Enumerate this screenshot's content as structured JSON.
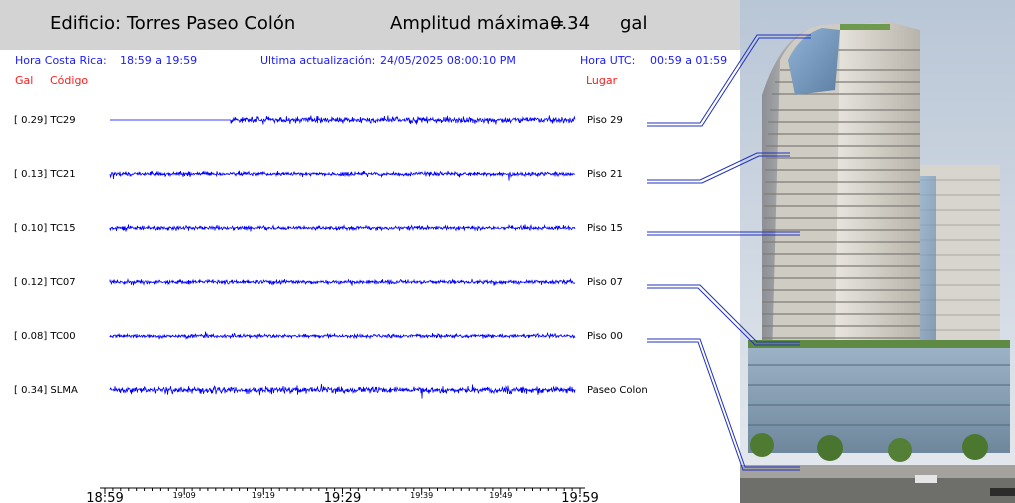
{
  "header": {
    "building_label": "Edificio:",
    "building_name": "Torres Paseo Colón",
    "max_amp_label": "Amplitud máxima=",
    "max_amp_value": "0.34",
    "max_amp_unit": "gal"
  },
  "info": {
    "local_time_label": "Hora Costa Rica:",
    "local_time_range": "18:59 a 19:59",
    "update_label": "Ultima actualización:",
    "update_value": "24/05/2025 08:00:10 PM",
    "utc_label": "Hora UTC:",
    "utc_range": "00:59 a 01:59"
  },
  "columns": {
    "gal": "Gal",
    "code": "Código",
    "place": "Lugar"
  },
  "channels": [
    {
      "label": "[  0.29] TC29",
      "place": "Piso 29",
      "amp": 0.29,
      "start_fraction": 0.26
    },
    {
      "label": "[  0.13] TC21",
      "place": "Piso 21",
      "amp": 0.13,
      "start_fraction": 0
    },
    {
      "label": "[  0.10] TC15",
      "place": "Piso 15",
      "amp": 0.1,
      "start_fraction": 0
    },
    {
      "label": "[  0.12] TC07",
      "place": "Piso 07",
      "amp": 0.12,
      "start_fraction": 0
    },
    {
      "label": "[  0.08] TC00",
      "place": "Piso 00",
      "amp": 0.08,
      "start_fraction": 0
    },
    {
      "label": "[  0.34] SLMA",
      "place": "Paseo Colon",
      "amp": 0.34,
      "start_fraction": 0
    }
  ],
  "time_axis": {
    "major_ticks": [
      "18:59",
      "19:29",
      "19:59"
    ],
    "minor_ticks": [
      "19:09",
      "19:19",
      "19:39",
      "19:49"
    ]
  },
  "colors": {
    "trace": "#0000ff",
    "header_bg": "#d3d3d3",
    "info_text": "#1a1aff",
    "column_text": "#ff1a1a"
  }
}
